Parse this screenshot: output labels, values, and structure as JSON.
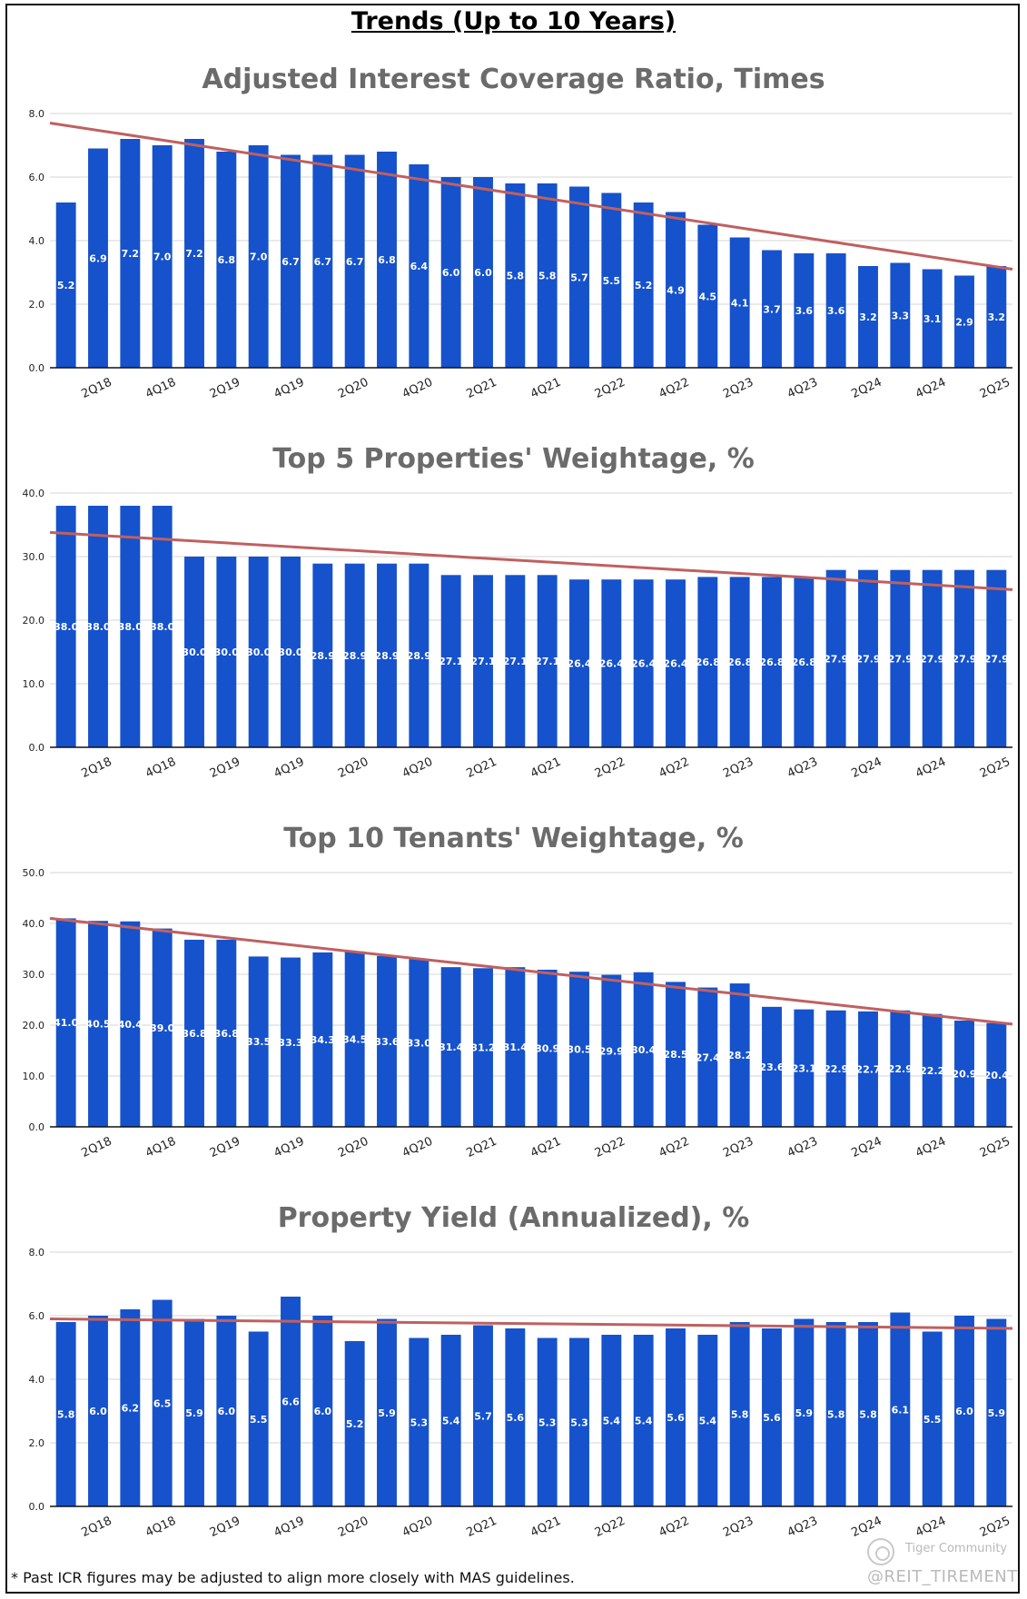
{
  "page": {
    "title": "Trends (Up to 10 Years)",
    "footnote": "* Past ICR figures may be adjusted to align more closely with MAS guidelines.",
    "watermark_brand": "Tiger Community",
    "watermark_handle": "@REIT_TIREMENT"
  },
  "colors": {
    "bar": "#1552cc",
    "trend": "#c06060",
    "grid": "#d6d6d6",
    "title": "#6b6b6b",
    "axis": "#111111"
  },
  "chart_data": [
    {
      "type": "bar",
      "title": "Adjusted Interest Coverage Ratio, Times",
      "ylim": [
        0,
        8
      ],
      "yticks": [
        "0.0",
        "2.0",
        "4.0",
        "6.0",
        "8.0"
      ],
      "values": [
        5.2,
        6.9,
        7.2,
        7.0,
        7.2,
        6.8,
        7.0,
        6.7,
        6.7,
        6.7,
        6.8,
        6.4,
        6.0,
        6.0,
        5.8,
        5.8,
        5.7,
        5.5,
        5.2,
        4.9,
        4.5,
        4.1,
        3.7,
        3.6,
        3.6,
        3.2,
        3.3,
        3.1,
        2.9,
        3.2
      ],
      "xtick_labels": [
        "2Q18",
        "4Q18",
        "2Q19",
        "4Q19",
        "2Q20",
        "4Q20",
        "2Q21",
        "4Q21",
        "2Q22",
        "4Q22",
        "2Q23",
        "4Q23",
        "2Q24",
        "4Q24",
        "2Q25"
      ],
      "trendline": [
        7.7,
        3.1
      ]
    },
    {
      "type": "bar",
      "title": "Top 5 Properties' Weightage, %",
      "ylim": [
        0,
        40
      ],
      "yticks": [
        "0.0",
        "10.0",
        "20.0",
        "30.0",
        "40.0"
      ],
      "values": [
        38.0,
        38.0,
        38.0,
        38.0,
        30.0,
        30.0,
        30.0,
        30.0,
        28.9,
        28.9,
        28.9,
        28.9,
        27.1,
        27.1,
        27.1,
        27.1,
        26.4,
        26.4,
        26.4,
        26.4,
        26.8,
        26.8,
        26.8,
        26.8,
        27.9,
        27.9,
        27.9,
        27.9,
        27.9,
        27.9
      ],
      "xtick_labels": [
        "2Q18",
        "4Q18",
        "2Q19",
        "4Q19",
        "2Q20",
        "4Q20",
        "2Q21",
        "4Q21",
        "2Q22",
        "4Q22",
        "2Q23",
        "4Q23",
        "2Q24",
        "4Q24",
        "2Q25"
      ],
      "trendline": [
        33.8,
        24.8
      ]
    },
    {
      "type": "bar",
      "title": "Top 10 Tenants' Weightage, %",
      "ylim": [
        0,
        50
      ],
      "yticks": [
        "0.0",
        "10.0",
        "20.0",
        "30.0",
        "40.0",
        "50.0"
      ],
      "values": [
        41.0,
        40.5,
        40.4,
        39.0,
        36.8,
        36.8,
        33.5,
        33.3,
        34.3,
        34.5,
        33.6,
        33.0,
        31.4,
        31.2,
        31.4,
        30.9,
        30.5,
        29.9,
        30.4,
        28.5,
        27.4,
        28.2,
        23.6,
        23.1,
        22.9,
        22.7,
        22.9,
        22.2,
        20.9,
        20.4
      ],
      "xtick_labels": [
        "2Q18",
        "4Q18",
        "2Q19",
        "4Q19",
        "2Q20",
        "4Q20",
        "2Q21",
        "4Q21",
        "2Q22",
        "4Q22",
        "2Q23",
        "4Q23",
        "2Q24",
        "4Q24",
        "2Q25"
      ],
      "trendline": [
        41.0,
        20.2
      ]
    },
    {
      "type": "bar",
      "title": "Property Yield (Annualized), %",
      "ylim": [
        0,
        8
      ],
      "yticks": [
        "0.0",
        "2.0",
        "4.0",
        "6.0",
        "8.0"
      ],
      "values": [
        5.8,
        6.0,
        6.2,
        6.5,
        5.9,
        6.0,
        5.5,
        6.6,
        6.0,
        5.2,
        5.9,
        5.3,
        5.4,
        5.7,
        5.6,
        5.3,
        5.3,
        5.4,
        5.4,
        5.6,
        5.4,
        5.8,
        5.6,
        5.9,
        5.8,
        5.8,
        6.1,
        5.5,
        6.0,
        5.9
      ],
      "xtick_labels": [
        "2Q18",
        "4Q18",
        "2Q19",
        "4Q19",
        "2Q20",
        "4Q20",
        "2Q21",
        "4Q21",
        "2Q22",
        "4Q22",
        "2Q23",
        "4Q23",
        "2Q24",
        "4Q24",
        "2Q25"
      ],
      "trendline": [
        5.9,
        5.6
      ]
    }
  ]
}
